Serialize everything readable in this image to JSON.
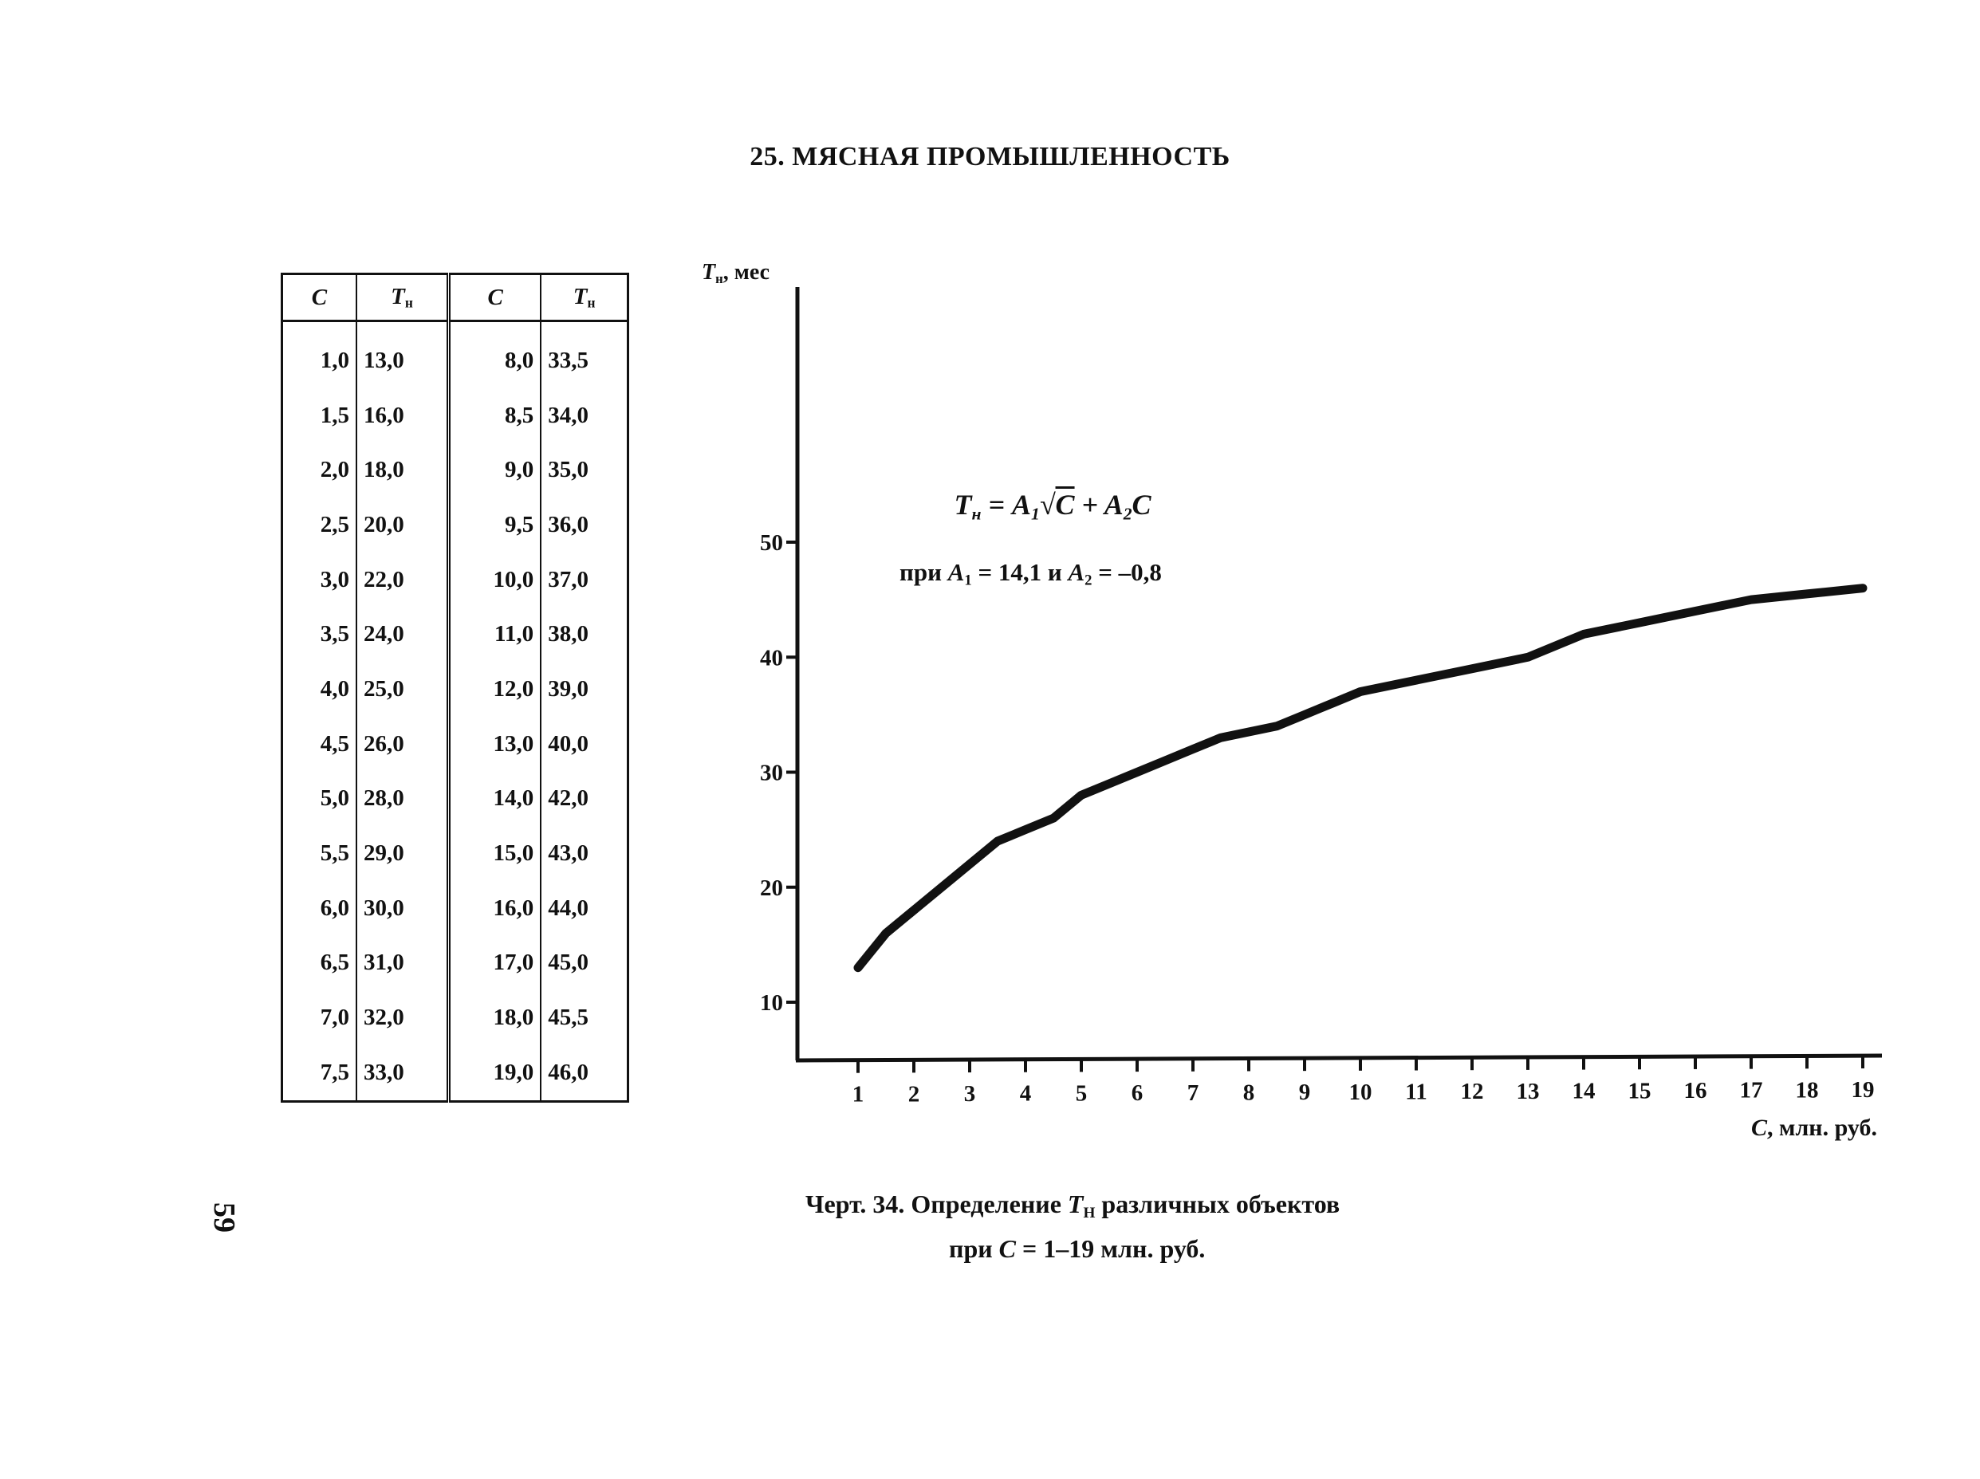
{
  "page": {
    "heading": "25. МЯСНАЯ ПРОМЫШЛЕННОСТЬ",
    "page_number": "59"
  },
  "table": {
    "headers": [
      "C",
      "T",
      "C",
      "T"
    ],
    "header_sub": "н",
    "rows": [
      [
        "1,0",
        "13,0",
        "8,0",
        "33,5"
      ],
      [
        "1,5",
        "16,0",
        "8,5",
        "34,0"
      ],
      [
        "2,0",
        "18,0",
        "9,0",
        "35,0"
      ],
      [
        "2,5",
        "20,0",
        "9,5",
        "36,0"
      ],
      [
        "3,0",
        "22,0",
        "10,0",
        "37,0"
      ],
      [
        "3,5",
        "24,0",
        "11,0",
        "38,0"
      ],
      [
        "4,0",
        "25,0",
        "12,0",
        "39,0"
      ],
      [
        "4,5",
        "26,0",
        "13,0",
        "40,0"
      ],
      [
        "5,0",
        "28,0",
        "14,0",
        "42,0"
      ],
      [
        "5,5",
        "29,0",
        "15,0",
        "43,0"
      ],
      [
        "6,0",
        "30,0",
        "16,0",
        "44,0"
      ],
      [
        "6,5",
        "31,0",
        "17,0",
        "45,0"
      ],
      [
        "7,0",
        "32,0",
        "18,0",
        "45,5"
      ],
      [
        "7,5",
        "33,0",
        "19,0",
        "46,0"
      ]
    ]
  },
  "formula": {
    "lhs": "T",
    "lhs_sub": "н",
    "eq": " = ",
    "a1": "A",
    "a1_sub": "1",
    "sqrt": "C",
    "plus": " + ",
    "a2": "A",
    "a2_sub": "2",
    "c": "C",
    "cond_prefix": "при ",
    "cond_a1": "A",
    "cond_a1_sub": "1",
    "cond_a1_val": " = 14,1  и  ",
    "cond_a2": "A",
    "cond_a2_sub": "2",
    "cond_a2_val": " = –0,8"
  },
  "caption": {
    "prefix": "Черт. 34. Определение ",
    "symbol": "T",
    "symbol_sub": "Н",
    "suffix": " различных объектов",
    "line2_prefix": "при ",
    "line2_symbol": "C",
    "line2_suffix": " = 1–19 млн. руб."
  },
  "chart_data": {
    "type": "line",
    "title": "",
    "ylabel_symbol": "T",
    "ylabel_sub": "н",
    "ylabel_unit": ", мес",
    "xlabel_symbol": "C",
    "xlabel_unit": ", млн. руб.",
    "xlim": [
      0,
      19
    ],
    "ylim": [
      5,
      60
    ],
    "x_ticks": [
      1,
      2,
      3,
      4,
      5,
      6,
      7,
      8,
      9,
      10,
      11,
      12,
      13,
      14,
      15,
      16,
      17,
      18,
      19
    ],
    "y_ticks": [
      10,
      20,
      30,
      40,
      50
    ],
    "grid": false,
    "series": [
      {
        "x": [
          1.0,
          1.5,
          2.0,
          2.5,
          3.0,
          3.5,
          4.0,
          4.5,
          5.0,
          5.5,
          6.0,
          6.5,
          7.0,
          7.5,
          8.0,
          8.5,
          9.0,
          9.5,
          10.0,
          11.0,
          12.0,
          13.0,
          14.0,
          15.0,
          16.0,
          17.0,
          18.0,
          19.0
        ],
        "y": [
          13.0,
          16.0,
          18.0,
          20.0,
          22.0,
          24.0,
          25.0,
          26.0,
          28.0,
          29.0,
          30.0,
          31.0,
          32.0,
          33.0,
          33.5,
          34.0,
          35.0,
          36.0,
          37.0,
          38.0,
          39.0,
          40.0,
          42.0,
          43.0,
          44.0,
          45.0,
          45.5,
          46.0
        ]
      }
    ]
  }
}
